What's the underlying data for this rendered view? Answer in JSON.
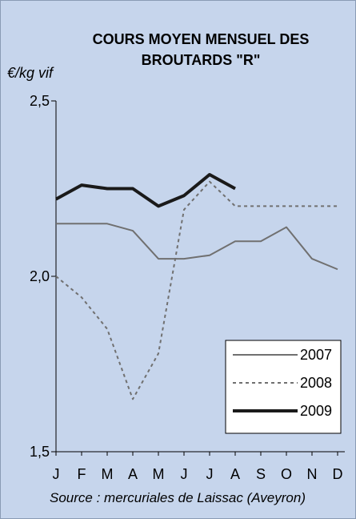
{
  "chart_data": {
    "type": "line",
    "title_lines": [
      "COURS MOYEN MENSUEL DES",
      "BROUTARDS \"R\""
    ],
    "ylabel": "€/kg vif",
    "ylim": [
      1.5,
      2.5
    ],
    "yticks": [
      1.5,
      2.0,
      2.5
    ],
    "ytick_labels": [
      "1,5",
      "2,0",
      "2,5"
    ],
    "categories": [
      "J",
      "F",
      "M",
      "A",
      "M",
      "J",
      "J",
      "A",
      "S",
      "O",
      "N",
      "D"
    ],
    "source": "Source : mercuriales de Laissac (Aveyron)",
    "legend_position": "bottom-right",
    "series": [
      {
        "name": "2007",
        "style": "solid",
        "color": "#707070",
        "values": [
          2.15,
          2.15,
          2.15,
          2.13,
          2.05,
          2.05,
          2.06,
          2.1,
          2.1,
          2.14,
          2.05,
          2.02
        ]
      },
      {
        "name": "2008",
        "style": "dashed",
        "color": "#707070",
        "values": [
          2.0,
          1.94,
          1.85,
          1.65,
          1.78,
          2.19,
          2.27,
          2.2,
          2.2,
          2.2,
          2.2,
          2.2
        ]
      },
      {
        "name": "2009",
        "style": "bold",
        "color": "#1a1a1a",
        "values": [
          2.22,
          2.26,
          2.25,
          2.25,
          2.2,
          2.23,
          2.29,
          2.25,
          null,
          null,
          null,
          null
        ]
      }
    ]
  }
}
